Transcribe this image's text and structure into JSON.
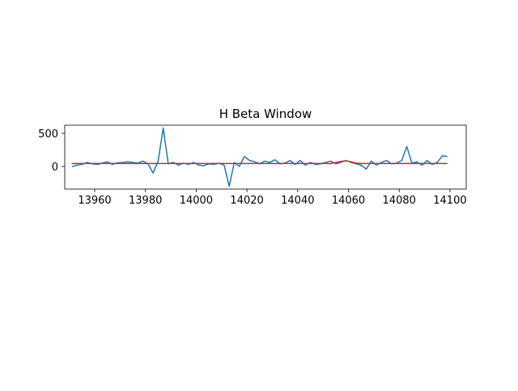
{
  "chart_data": {
    "type": "line",
    "title": "H Beta Window",
    "x": [
      13951,
      13953,
      13955,
      13957,
      13959,
      13961,
      13963,
      13965,
      13967,
      13969,
      13971,
      13973,
      13975,
      13977,
      13979,
      13981,
      13983,
      13985,
      13987,
      13989,
      13991,
      13993,
      13995,
      13997,
      13999,
      14001,
      14003,
      14005,
      14007,
      14009,
      14011,
      14013,
      14015,
      14017,
      14019,
      14021,
      14023,
      14025,
      14027,
      14029,
      14031,
      14033,
      14035,
      14037,
      14039,
      14041,
      14043,
      14045,
      14047,
      14049,
      14051,
      14053,
      14055,
      14057,
      14059,
      14061,
      14063,
      14065,
      14067,
      14069,
      14071,
      14073,
      14075,
      14077,
      14079,
      14081,
      14083,
      14085,
      14087,
      14089,
      14091,
      14093,
      14095,
      14097,
      14099
    ],
    "series": [
      {
        "color": "#1f77b4",
        "values": [
          -5,
          20,
          30,
          60,
          40,
          30,
          50,
          70,
          30,
          55,
          60,
          70,
          60,
          50,
          80,
          40,
          -100,
          80,
          580,
          40,
          60,
          20,
          50,
          30,
          60,
          20,
          10,
          40,
          30,
          50,
          20,
          -300,
          60,
          0,
          150,
          90,
          70,
          40,
          80,
          60,
          100,
          40,
          50,
          90,
          30,
          90,
          20,
          60,
          30,
          40,
          60,
          80,
          40,
          60,
          90,
          60,
          40,
          20,
          -40,
          80,
          20,
          60,
          90,
          40,
          50,
          90,
          300,
          50,
          70,
          20,
          90,
          30,
          60,
          160,
          150
        ]
      },
      {
        "color": "#d62728",
        "values": [
          45,
          45,
          45,
          45,
          45,
          45,
          45,
          45,
          45,
          45,
          45,
          45,
          45,
          45,
          45,
          45,
          45,
          45,
          45,
          45,
          45,
          45,
          45,
          45,
          45,
          45,
          45,
          45,
          45,
          45,
          45,
          45,
          45,
          45,
          45,
          45,
          45,
          45,
          45,
          45,
          45,
          45,
          45,
          45,
          45,
          45,
          45,
          45,
          45,
          45,
          45,
          45,
          60,
          75,
          85,
          70,
          50,
          45,
          45,
          45,
          45,
          45,
          45,
          45,
          45,
          45,
          45,
          45,
          45,
          45,
          45,
          45,
          45,
          45,
          45
        ]
      }
    ],
    "xlim": [
      13948.2,
      14106.4
    ],
    "xticks": [
      13960,
      13980,
      14000,
      14020,
      14040,
      14060,
      14080,
      14100
    ],
    "ylim": [
      -341,
      622
    ],
    "yticks": [
      0,
      500
    ]
  }
}
